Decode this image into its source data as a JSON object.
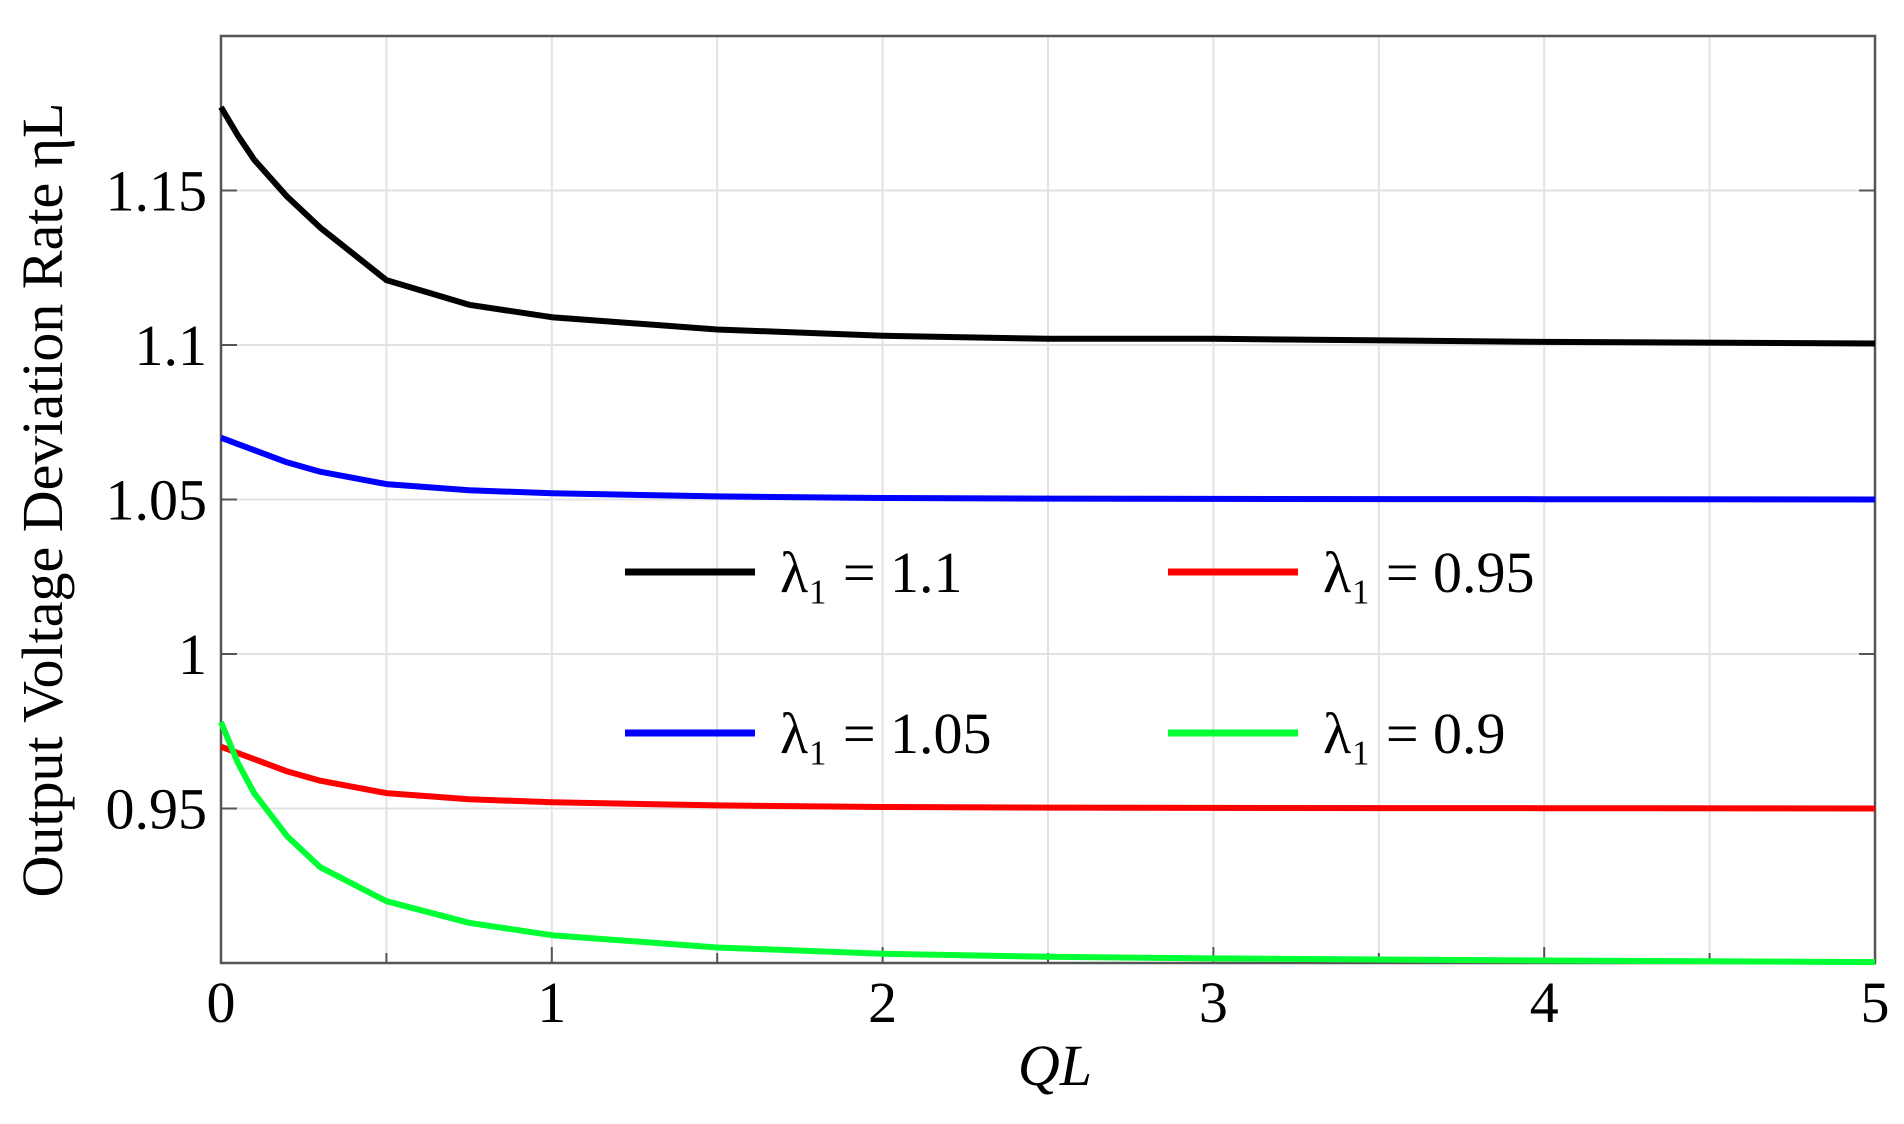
{
  "chart_data": {
    "type": "line",
    "xlabel": "QL",
    "ylabel": "Output Voltage Deviation Rate ηL",
    "x": [
      0,
      0.05,
      0.1,
      0.2,
      0.3,
      0.5,
      0.75,
      1,
      1.5,
      2,
      2.5,
      3,
      4,
      5
    ],
    "series": [
      {
        "name": "λ₁ = 1.1",
        "color": "#000000",
        "values": [
          1.177,
          1.168,
          1.16,
          1.148,
          1.138,
          1.121,
          1.113,
          1.109,
          1.105,
          1.103,
          1.102,
          1.102,
          1.101,
          1.1005
        ]
      },
      {
        "name": "λ₁ = 0.95",
        "color": "#ff0000",
        "values": [
          0.97,
          0.968,
          0.966,
          0.962,
          0.959,
          0.955,
          0.953,
          0.952,
          0.951,
          0.9505,
          0.9503,
          0.9502,
          0.9501,
          0.95
        ]
      },
      {
        "name": "λ₁ = 1.05",
        "color": "#0000ff",
        "values": [
          1.07,
          1.068,
          1.066,
          1.062,
          1.059,
          1.055,
          1.053,
          1.052,
          1.051,
          1.0505,
          1.0503,
          1.0502,
          1.0501,
          1.05
        ]
      },
      {
        "name": "λ₁ = 0.9",
        "color": "#00ff33",
        "values": [
          0.978,
          0.965,
          0.955,
          0.941,
          0.931,
          0.92,
          0.913,
          0.909,
          0.905,
          0.903,
          0.902,
          0.9015,
          0.9008,
          0.9003
        ]
      }
    ],
    "xlim": [
      0,
      5
    ],
    "xticks": [
      0,
      1,
      2,
      3,
      4,
      5
    ],
    "ylim": [
      0.9,
      1.2
    ],
    "yticks": [
      0.95,
      1,
      1.05,
      1.1,
      1.15
    ],
    "grid": true,
    "legend": "center"
  }
}
